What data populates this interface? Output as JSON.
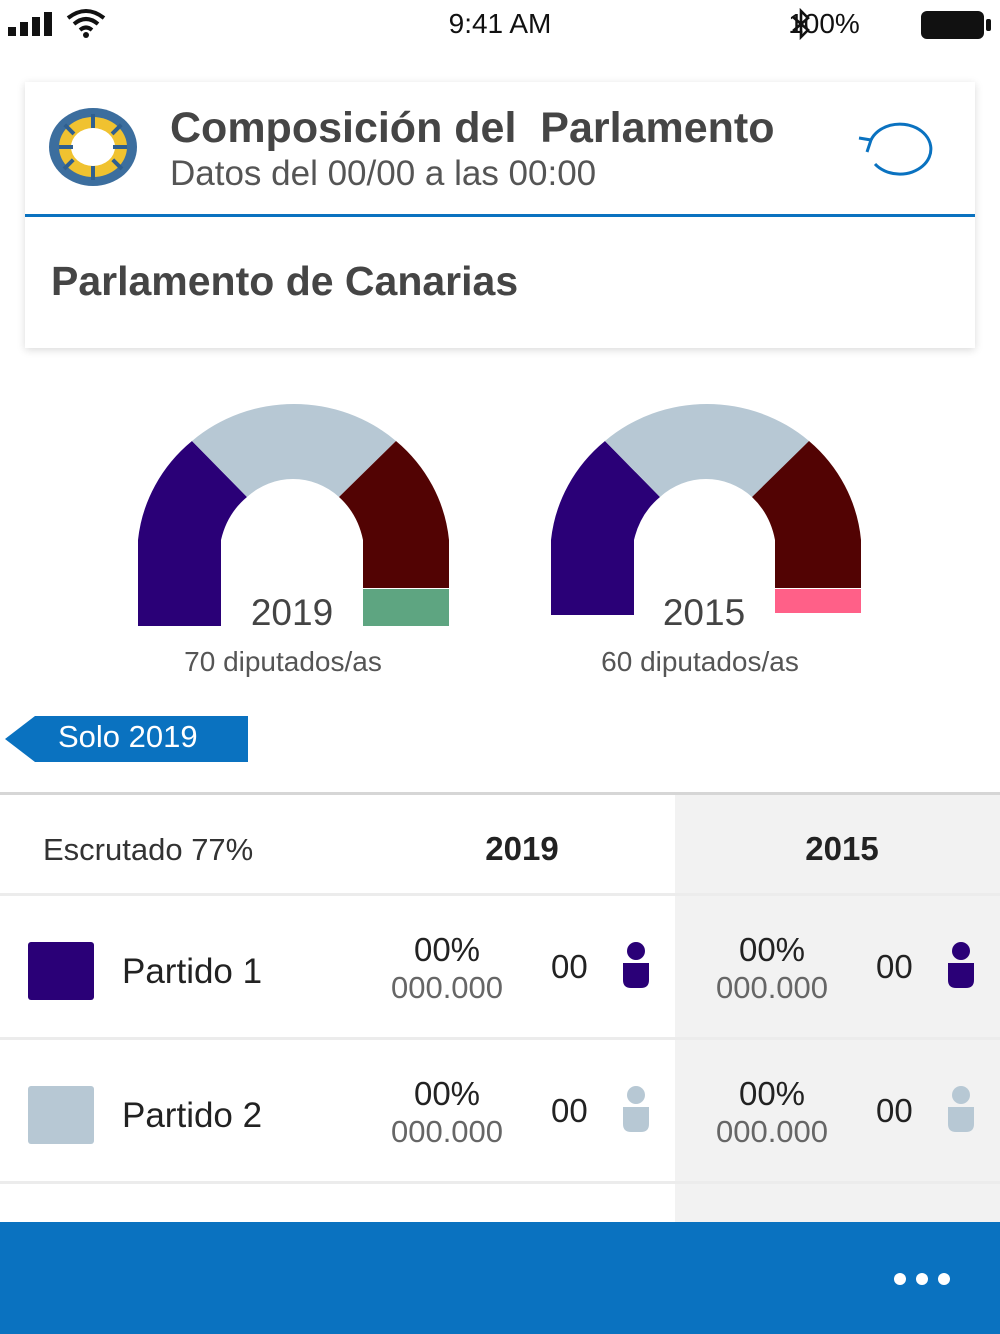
{
  "status_bar": {
    "time": "9:41 AM",
    "battery": "100%"
  },
  "header": {
    "title": "Composición del  Parlamento",
    "subtitle": "Datos del 00/00 a las 00:00",
    "parliament": "Parlamento de Canarias"
  },
  "hemicycles": [
    {
      "year": "2019",
      "seats_label": "70 diputados/as"
    },
    {
      "year": "2015",
      "seats_label": "60 diputados/as"
    }
  ],
  "filter": {
    "label": "Solo 2019"
  },
  "table": {
    "scrutinized": "Escrutado 77%",
    "year_a": "2019",
    "year_b": "2015",
    "rows": [
      {
        "party": "Partido 1",
        "color": "#2a0077",
        "a": {
          "pct": "00%",
          "votes": "000.000",
          "seats": "00"
        },
        "b": {
          "pct": "00%",
          "votes": "000.000",
          "seats": "00"
        }
      },
      {
        "party": "Partido 2",
        "color": "#b7c8d4",
        "a": {
          "pct": "00%",
          "votes": "000.000",
          "seats": "00"
        },
        "b": {
          "pct": "00%",
          "votes": "000.000",
          "seats": "00"
        }
      }
    ]
  },
  "colors": {
    "accent": "#0a72c0",
    "party_1": "#2a0077",
    "party_2": "#b7c8d4",
    "party_3": "#520303",
    "party_4": "#5ea581",
    "party_5": "#ff6088"
  },
  "icons": [
    "signal-icon",
    "wifi-icon",
    "bluetooth-icon",
    "battery-icon",
    "logo-icon",
    "refresh-icon",
    "person-icon",
    "more-icon"
  ]
}
